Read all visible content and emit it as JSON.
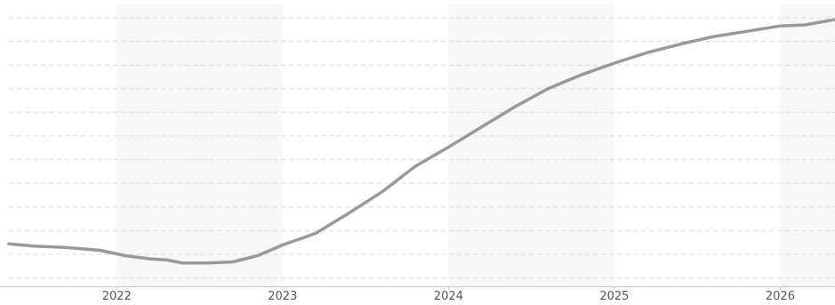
{
  "chart_data": {
    "type": "line",
    "title": "",
    "xlabel": "",
    "ylabel": "",
    "x_ticks": [
      "2022",
      "2023",
      "2024",
      "2025",
      "2026"
    ],
    "xlim": [
      2021.35,
      2026.33
    ],
    "ylim": [
      0,
      12
    ],
    "grid": true,
    "shaded_bands": [
      [
        2022.0,
        2023.0
      ],
      [
        2024.0,
        2025.0
      ],
      [
        2026.0,
        2026.33
      ]
    ],
    "colors": {
      "line": "#999999",
      "band": "#f7f7f7",
      "grid": "#d9d9d9",
      "axis": "#c8c8c8"
    },
    "series": [
      {
        "x": [
          2021.35,
          2021.5,
          2021.7,
          2021.9,
          2022.05,
          2022.2,
          2022.3,
          2022.4,
          2022.55,
          2022.7,
          2022.85,
          2023.0,
          2023.2,
          2023.4,
          2023.6,
          2023.8,
          2024.0,
          2024.2,
          2024.4,
          2024.6,
          2024.8,
          2025.0,
          2025.2,
          2025.4,
          2025.6,
          2025.8,
          2026.0,
          2026.15,
          2026.33
        ],
        "y": [
          1.45,
          1.35,
          1.28,
          1.15,
          0.9,
          0.75,
          0.7,
          0.55,
          0.55,
          0.6,
          0.9,
          1.4,
          1.95,
          2.9,
          3.9,
          5.1,
          6.0,
          6.95,
          7.9,
          8.75,
          9.4,
          9.95,
          10.45,
          10.85,
          11.2,
          11.45,
          11.7,
          11.75,
          12.0
        ]
      }
    ]
  }
}
